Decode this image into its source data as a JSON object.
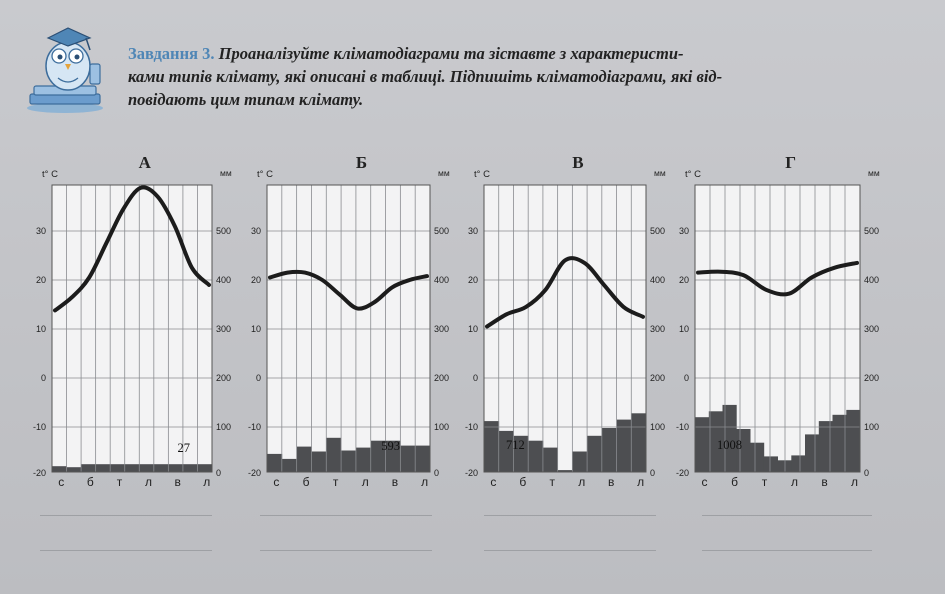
{
  "task": {
    "label": "Завдання 3.",
    "lines": [
      "Проаналізуйте кліматодіаграми та зіставте з характеристи-",
      "ками типів клімату, які описані в таблиці. Підпишіть кліматодіаграми, які від-",
      "повідають цим типам клімату."
    ]
  },
  "colors": {
    "bar": "#4d4e51",
    "line": "#1c1c1c",
    "grid": "#8a8c90",
    "plot_bg": "#f3f3f4",
    "accent": "#4f86b6"
  },
  "chart_data": [
    {
      "type": "line",
      "title": "А",
      "y_left_unit": "t° C",
      "y_right_unit": "мм",
      "y_left_ticks": [
        "30",
        "20",
        "10",
        "0",
        "-10",
        "-20"
      ],
      "y_right_ticks": [
        "500",
        "400",
        "300",
        "200",
        "100",
        "0"
      ],
      "month_labels": [
        "с",
        "б",
        "т",
        "л",
        "в",
        "л"
      ],
      "temperature": [
        13.8,
        16.5,
        20.5,
        27.5,
        34.5,
        38.8,
        37,
        31,
        22.5,
        19
      ],
      "precipitation": [
        20,
        18,
        24,
        24,
        24,
        24,
        24,
        24,
        24,
        24,
        24
      ],
      "annual_precipitation": "27"
    },
    {
      "type": "line",
      "title": "Б",
      "y_left_unit": "t° C",
      "y_right_unit": "мм",
      "y_left_ticks": [
        "30",
        "20",
        "10",
        "0",
        "-10",
        "-20"
      ],
      "y_right_ticks": [
        "500",
        "400",
        "300",
        "200",
        "100",
        "0"
      ],
      "month_labels": [
        "с",
        "б",
        "т",
        "л",
        "в",
        "л"
      ],
      "temperature": [
        20.5,
        21.5,
        21.5,
        20,
        17,
        14.2,
        15.5,
        18.5,
        20,
        20.8
      ],
      "precipitation": [
        45,
        35,
        60,
        50,
        78,
        52,
        58,
        72,
        72,
        62,
        62
      ],
      "annual_precipitation": "593"
    },
    {
      "type": "line",
      "title": "В",
      "y_left_unit": "t° C",
      "y_right_unit": "мм",
      "y_left_ticks": [
        "30",
        "20",
        "10",
        "0",
        "-10",
        "-20"
      ],
      "y_right_ticks": [
        "500",
        "400",
        "300",
        "200",
        "100",
        "0"
      ],
      "month_labels": [
        "с",
        "б",
        "т",
        "л",
        "в",
        "л"
      ],
      "temperature": [
        10.5,
        13,
        14.5,
        18,
        24,
        23.5,
        19,
        14.5,
        12.5
      ],
      "precipitation": [
        112,
        92,
        82,
        72,
        58,
        12,
        50,
        82,
        98,
        115,
        128
      ],
      "annual_precipitation": "712"
    },
    {
      "type": "line",
      "title": "Г",
      "y_left_unit": "t° C",
      "y_right_unit": "мм",
      "y_left_ticks": [
        "30",
        "20",
        "10",
        "0",
        "-10",
        "-20"
      ],
      "y_right_ticks": [
        "500",
        "400",
        "300",
        "200",
        "100",
        "0"
      ],
      "month_labels": [
        "с",
        "б",
        "т",
        "л",
        "в",
        "л"
      ],
      "temperature": [
        21.5,
        21.7,
        21,
        18,
        17.2,
        20.5,
        22.5,
        23.5
      ],
      "precipitation": [
        120,
        132,
        145,
        96,
        68,
        40,
        32,
        42,
        85,
        112,
        125,
        135
      ],
      "annual_precipitation": "1008"
    }
  ]
}
